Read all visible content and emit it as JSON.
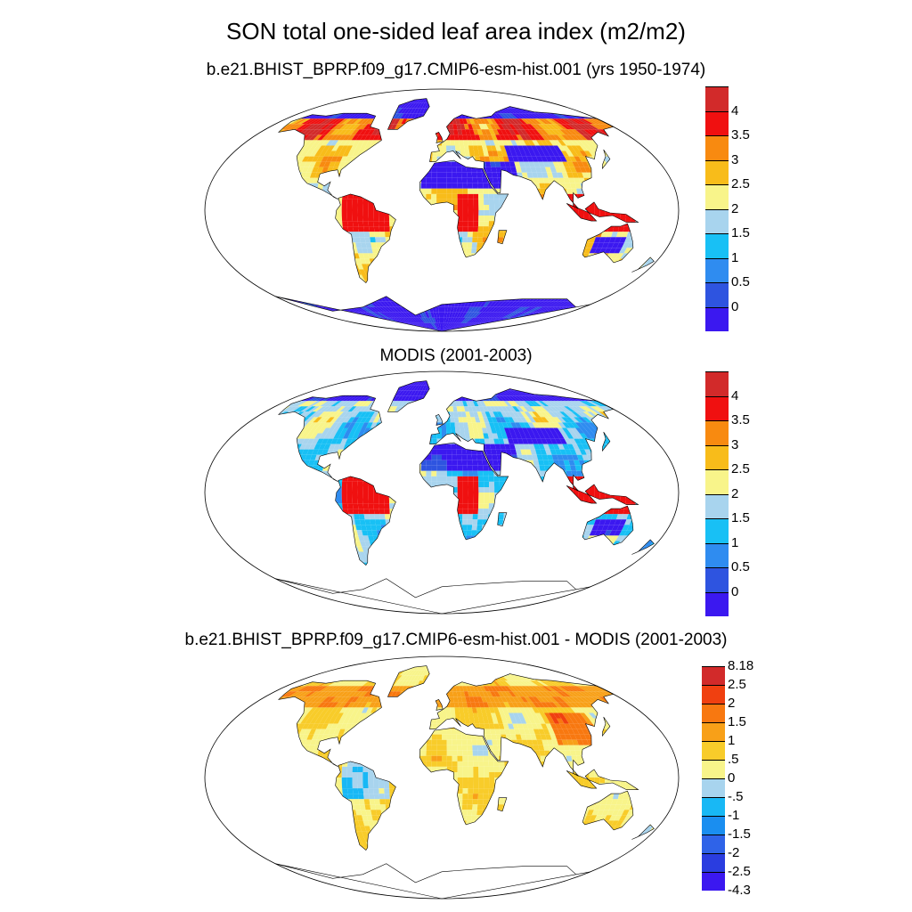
{
  "title": "SON total one-sided leaf area index (m2/m2)",
  "panels": [
    {
      "title": "b.e21.BHIST_BPRP.f09_g17.CMIP6-esm-hist.001 (yrs 1950-1974)",
      "field": "model",
      "colorbar": {
        "colors": [
          "#3b18f0",
          "#2e54e0",
          "#2f8cf0",
          "#18c0f5",
          "#a8d4ee",
          "#f8f48a",
          "#f8bc1a",
          "#f88a10",
          "#f01010",
          "#d22a2a"
        ],
        "labels": [
          "0",
          "0.5",
          "1",
          "1.5",
          "2",
          "2.5",
          "3",
          "3.5",
          "4"
        ]
      }
    },
    {
      "title": "MODIS (2001-2003)",
      "field": "modis",
      "colorbar": {
        "colors": [
          "#3b18f0",
          "#2e54e0",
          "#2f8cf0",
          "#18c0f5",
          "#a8d4ee",
          "#f8f48a",
          "#f8bc1a",
          "#f88a10",
          "#f01010",
          "#d22a2a"
        ],
        "labels": [
          "0",
          "0.5",
          "1",
          "1.5",
          "2",
          "2.5",
          "3",
          "3.5",
          "4"
        ]
      }
    },
    {
      "title": "b.e21.BHIST_BPRP.f09_g17.CMIP6-esm-hist.001 - MODIS (2001-2003)",
      "field": "diff",
      "colorbar": {
        "colors": [
          "#3b18f0",
          "#2a3de0",
          "#2f63e8",
          "#1a8ef0",
          "#18b8f5",
          "#a8d4ee",
          "#f8f48a",
          "#f8cc2a",
          "#f8a018",
          "#f87810",
          "#f04010",
          "#d22a2a"
        ],
        "labels": [
          "-4.3",
          "-2.5",
          "-2",
          "-1.5",
          "-1",
          "-.5",
          "0",
          ".5",
          "1",
          "1.5",
          "2",
          "2.5",
          "8.18"
        ],
        "end_labels": true
      }
    }
  ]
}
